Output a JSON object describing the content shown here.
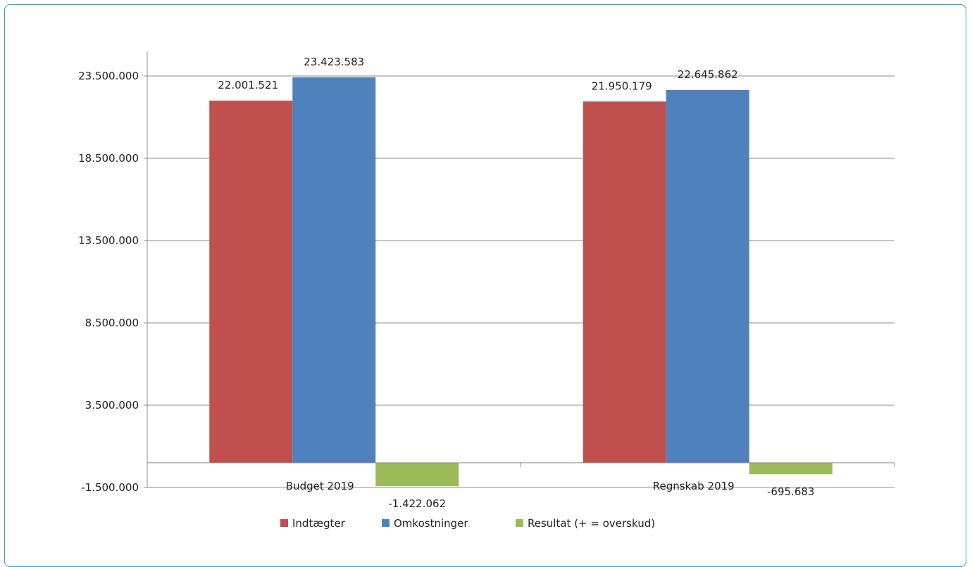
{
  "chart_data": {
    "type": "bar",
    "categories": [
      "Budget 2019",
      "Regnskab 2019"
    ],
    "series": [
      {
        "name": "Indtægter",
        "values": [
          22001521,
          21950179
        ],
        "labels": [
          "22.001.521",
          "21.950.179"
        ],
        "color": "#c0504d"
      },
      {
        "name": "Omkostninger",
        "values": [
          23423583,
          22645862
        ],
        "labels": [
          "23.423.583",
          "22.645.862"
        ],
        "color": "#4f81bd"
      },
      {
        "name": "Resultat (+ = overskud)",
        "values": [
          -1422062,
          -695683
        ],
        "labels": [
          "-1.422.062",
          "-695.683"
        ],
        "color": "#9bbb59"
      }
    ],
    "yticks": [
      23500000,
      18500000,
      13500000,
      8500000,
      3500000,
      -1500000
    ],
    "ytick_labels": [
      "23.500.000",
      "18.500.000",
      "13.500.000",
      "8.500.000",
      "3.500.000",
      "-1.500.000"
    ],
    "ylim": [
      -1500000,
      25000000
    ],
    "grid": true,
    "legend_position": "bottom"
  }
}
